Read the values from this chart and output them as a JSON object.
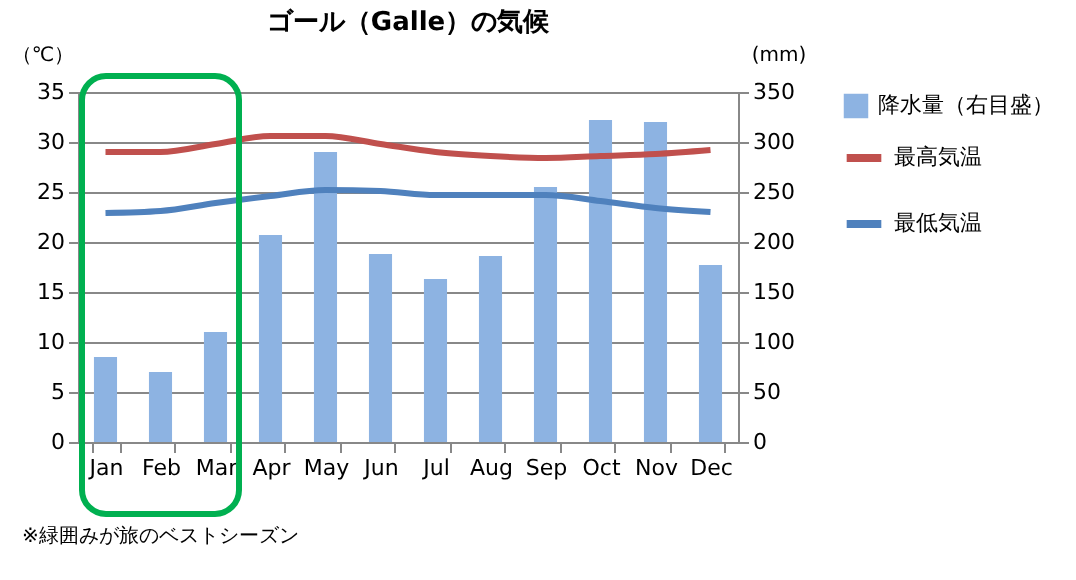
{
  "chart_data": {
    "type": "bar",
    "title": "ゴール（Galle）の気候",
    "ylabel": "（℃）",
    "y2label": "(mm)",
    "categories": [
      "Jan",
      "Feb",
      "Mar",
      "Apr",
      "May",
      "Jun",
      "Jul",
      "Aug",
      "Sep",
      "Oct",
      "Nov",
      "Dec"
    ],
    "series": [
      {
        "name": "降水量（右目盛）",
        "axis": "y2",
        "color": "#8db3e2",
        "values": [
          85,
          70,
          110,
          207,
          290,
          188,
          163,
          186,
          255,
          322,
          320,
          177
        ]
      },
      {
        "name": "最高気温",
        "type": "line",
        "color": "#c0504d",
        "values": [
          29.0,
          29.0,
          29.8,
          30.6,
          30.6,
          29.8,
          29.0,
          28.6,
          28.4,
          28.6,
          28.8,
          29.2
        ]
      },
      {
        "name": "最低気温",
        "type": "line",
        "color": "#4f81bd",
        "values": [
          22.9,
          23.1,
          23.9,
          24.6,
          25.2,
          25.1,
          24.7,
          24.7,
          24.7,
          24.1,
          23.4,
          23.0
        ]
      }
    ],
    "ylim": [
      0,
      35
    ],
    "yticks": [
      0,
      5,
      10,
      15,
      20,
      25,
      30,
      35
    ],
    "y2lim": [
      0,
      350
    ],
    "y2ticks": [
      0,
      50,
      100,
      150,
      200,
      250,
      300,
      350
    ],
    "annotations": [
      "※緑囲みが旅のベストシーズン"
    ],
    "grid": "y",
    "legend": "right"
  }
}
